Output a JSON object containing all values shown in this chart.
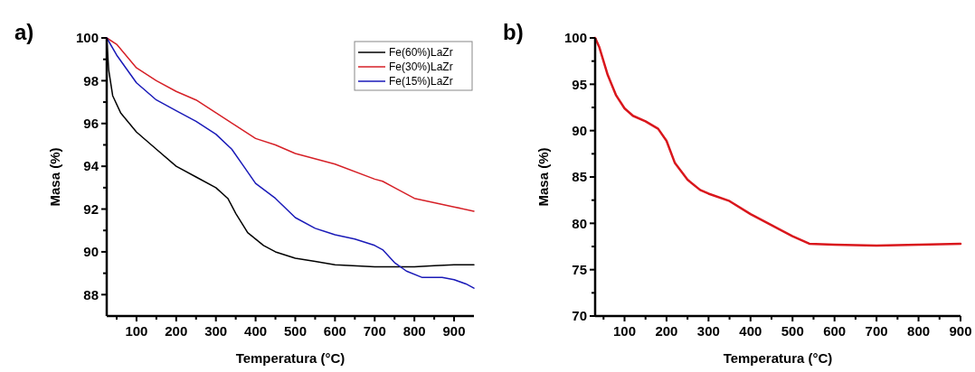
{
  "chart_data": [
    {
      "type": "line",
      "annotations": [
        "a)"
      ],
      "xlabel": "Temperatura (°C)",
      "ylabel": "Masa (%)",
      "xlim": [
        25,
        950
      ],
      "ylim": [
        87,
        100
      ],
      "legend": "top right",
      "grid": false,
      "xticks": [
        {
          "value": 50,
          "label": null
        },
        100,
        {
          "value": 150,
          "label": null
        },
        200,
        {
          "value": 250,
          "label": null
        },
        300,
        {
          "value": 350,
          "label": null
        },
        400,
        {
          "value": 450,
          "label": null
        },
        500,
        {
          "value": 550,
          "label": null
        },
        600,
        {
          "value": 650,
          "label": null
        },
        700,
        {
          "value": 750,
          "label": null
        },
        800,
        {
          "value": 850,
          "label": null
        },
        900
      ],
      "yticks": [
        88,
        {
          "value": 89,
          "label": null
        },
        90,
        {
          "value": 91,
          "label": null
        },
        92,
        {
          "value": 93,
          "label": null
        },
        94,
        {
          "value": 95,
          "label": null
        },
        96,
        {
          "value": 97,
          "label": null
        },
        98,
        {
          "value": 99,
          "label": null
        },
        100
      ],
      "series": [
        {
          "name": "Fe(60%)LaZr",
          "color": "#000000",
          "x": [
            25,
            30,
            40,
            60,
            100,
            150,
            200,
            250,
            300,
            330,
            350,
            380,
            420,
            450,
            500,
            550,
            600,
            700,
            800,
            850,
            900,
            950
          ],
          "values": [
            100,
            98.5,
            97.3,
            96.5,
            95.6,
            94.8,
            94,
            93.5,
            93,
            92.5,
            91.8,
            90.9,
            90.3,
            90,
            89.7,
            89.55,
            89.4,
            89.3,
            89.3,
            89.35,
            89.4,
            89.4
          ]
        },
        {
          "name": "Fe(30%)LaZr",
          "color": "#d62027",
          "x": [
            25,
            50,
            100,
            150,
            200,
            250,
            300,
            350,
            400,
            450,
            500,
            600,
            700,
            720,
            750,
            800,
            850,
            900,
            950
          ],
          "values": [
            100,
            99.7,
            98.6,
            98,
            97.5,
            97.1,
            96.5,
            95.9,
            95.3,
            95,
            94.6,
            94.1,
            93.4,
            93.3,
            93,
            92.5,
            92.3,
            92.1,
            91.9
          ]
        },
        {
          "name": "Fe(15%)LaZr",
          "color": "#1a1ab8",
          "x": [
            25,
            50,
            100,
            150,
            200,
            250,
            300,
            340,
            370,
            400,
            450,
            500,
            550,
            600,
            650,
            700,
            720,
            750,
            780,
            820,
            870,
            900,
            930,
            950
          ],
          "values": [
            100,
            99.2,
            97.9,
            97.1,
            96.6,
            96.1,
            95.5,
            94.8,
            94,
            93.2,
            92.5,
            91.6,
            91.1,
            90.8,
            90.6,
            90.3,
            90.1,
            89.5,
            89.1,
            88.8,
            88.8,
            88.7,
            88.5,
            88.3
          ]
        }
      ]
    },
    {
      "type": "line",
      "annotations": [
        "b)"
      ],
      "xlabel": "Temperatura (°C)",
      "ylabel": "Masa (%)",
      "xlim": [
        30,
        900
      ],
      "ylim": [
        70,
        100
      ],
      "grid": false,
      "xticks": [
        {
          "value": 50,
          "label": null
        },
        100,
        {
          "value": 150,
          "label": null
        },
        200,
        {
          "value": 250,
          "label": null
        },
        300,
        {
          "value": 350,
          "label": null
        },
        400,
        {
          "value": 450,
          "label": null
        },
        500,
        {
          "value": 550,
          "label": null
        },
        600,
        {
          "value": 650,
          "label": null
        },
        700,
        {
          "value": 750,
          "label": null
        },
        800,
        {
          "value": 850,
          "label": null
        },
        900
      ],
      "yticks": [
        70,
        {
          "value": 72.5,
          "label": null
        },
        75,
        {
          "value": 77.5,
          "label": null
        },
        80,
        {
          "value": 82.5,
          "label": null
        },
        85,
        {
          "value": 87.5,
          "label": null
        },
        90,
        {
          "value": 92.5,
          "label": null
        },
        95,
        {
          "value": 97.5,
          "label": null
        },
        100
      ],
      "series": [
        {
          "color": "#d9161c",
          "x": [
            30,
            40,
            60,
            80,
            100,
            120,
            150,
            180,
            200,
            220,
            250,
            280,
            300,
            350,
            400,
            450,
            500,
            540,
            600,
            700,
            800,
            900
          ],
          "values": [
            100,
            99,
            96,
            93.8,
            92.4,
            91.6,
            91,
            90.2,
            88.9,
            86.5,
            84.7,
            83.6,
            83.2,
            82.4,
            81,
            79.8,
            78.6,
            77.8,
            77.7,
            77.6,
            77.7,
            77.8
          ]
        }
      ]
    }
  ]
}
